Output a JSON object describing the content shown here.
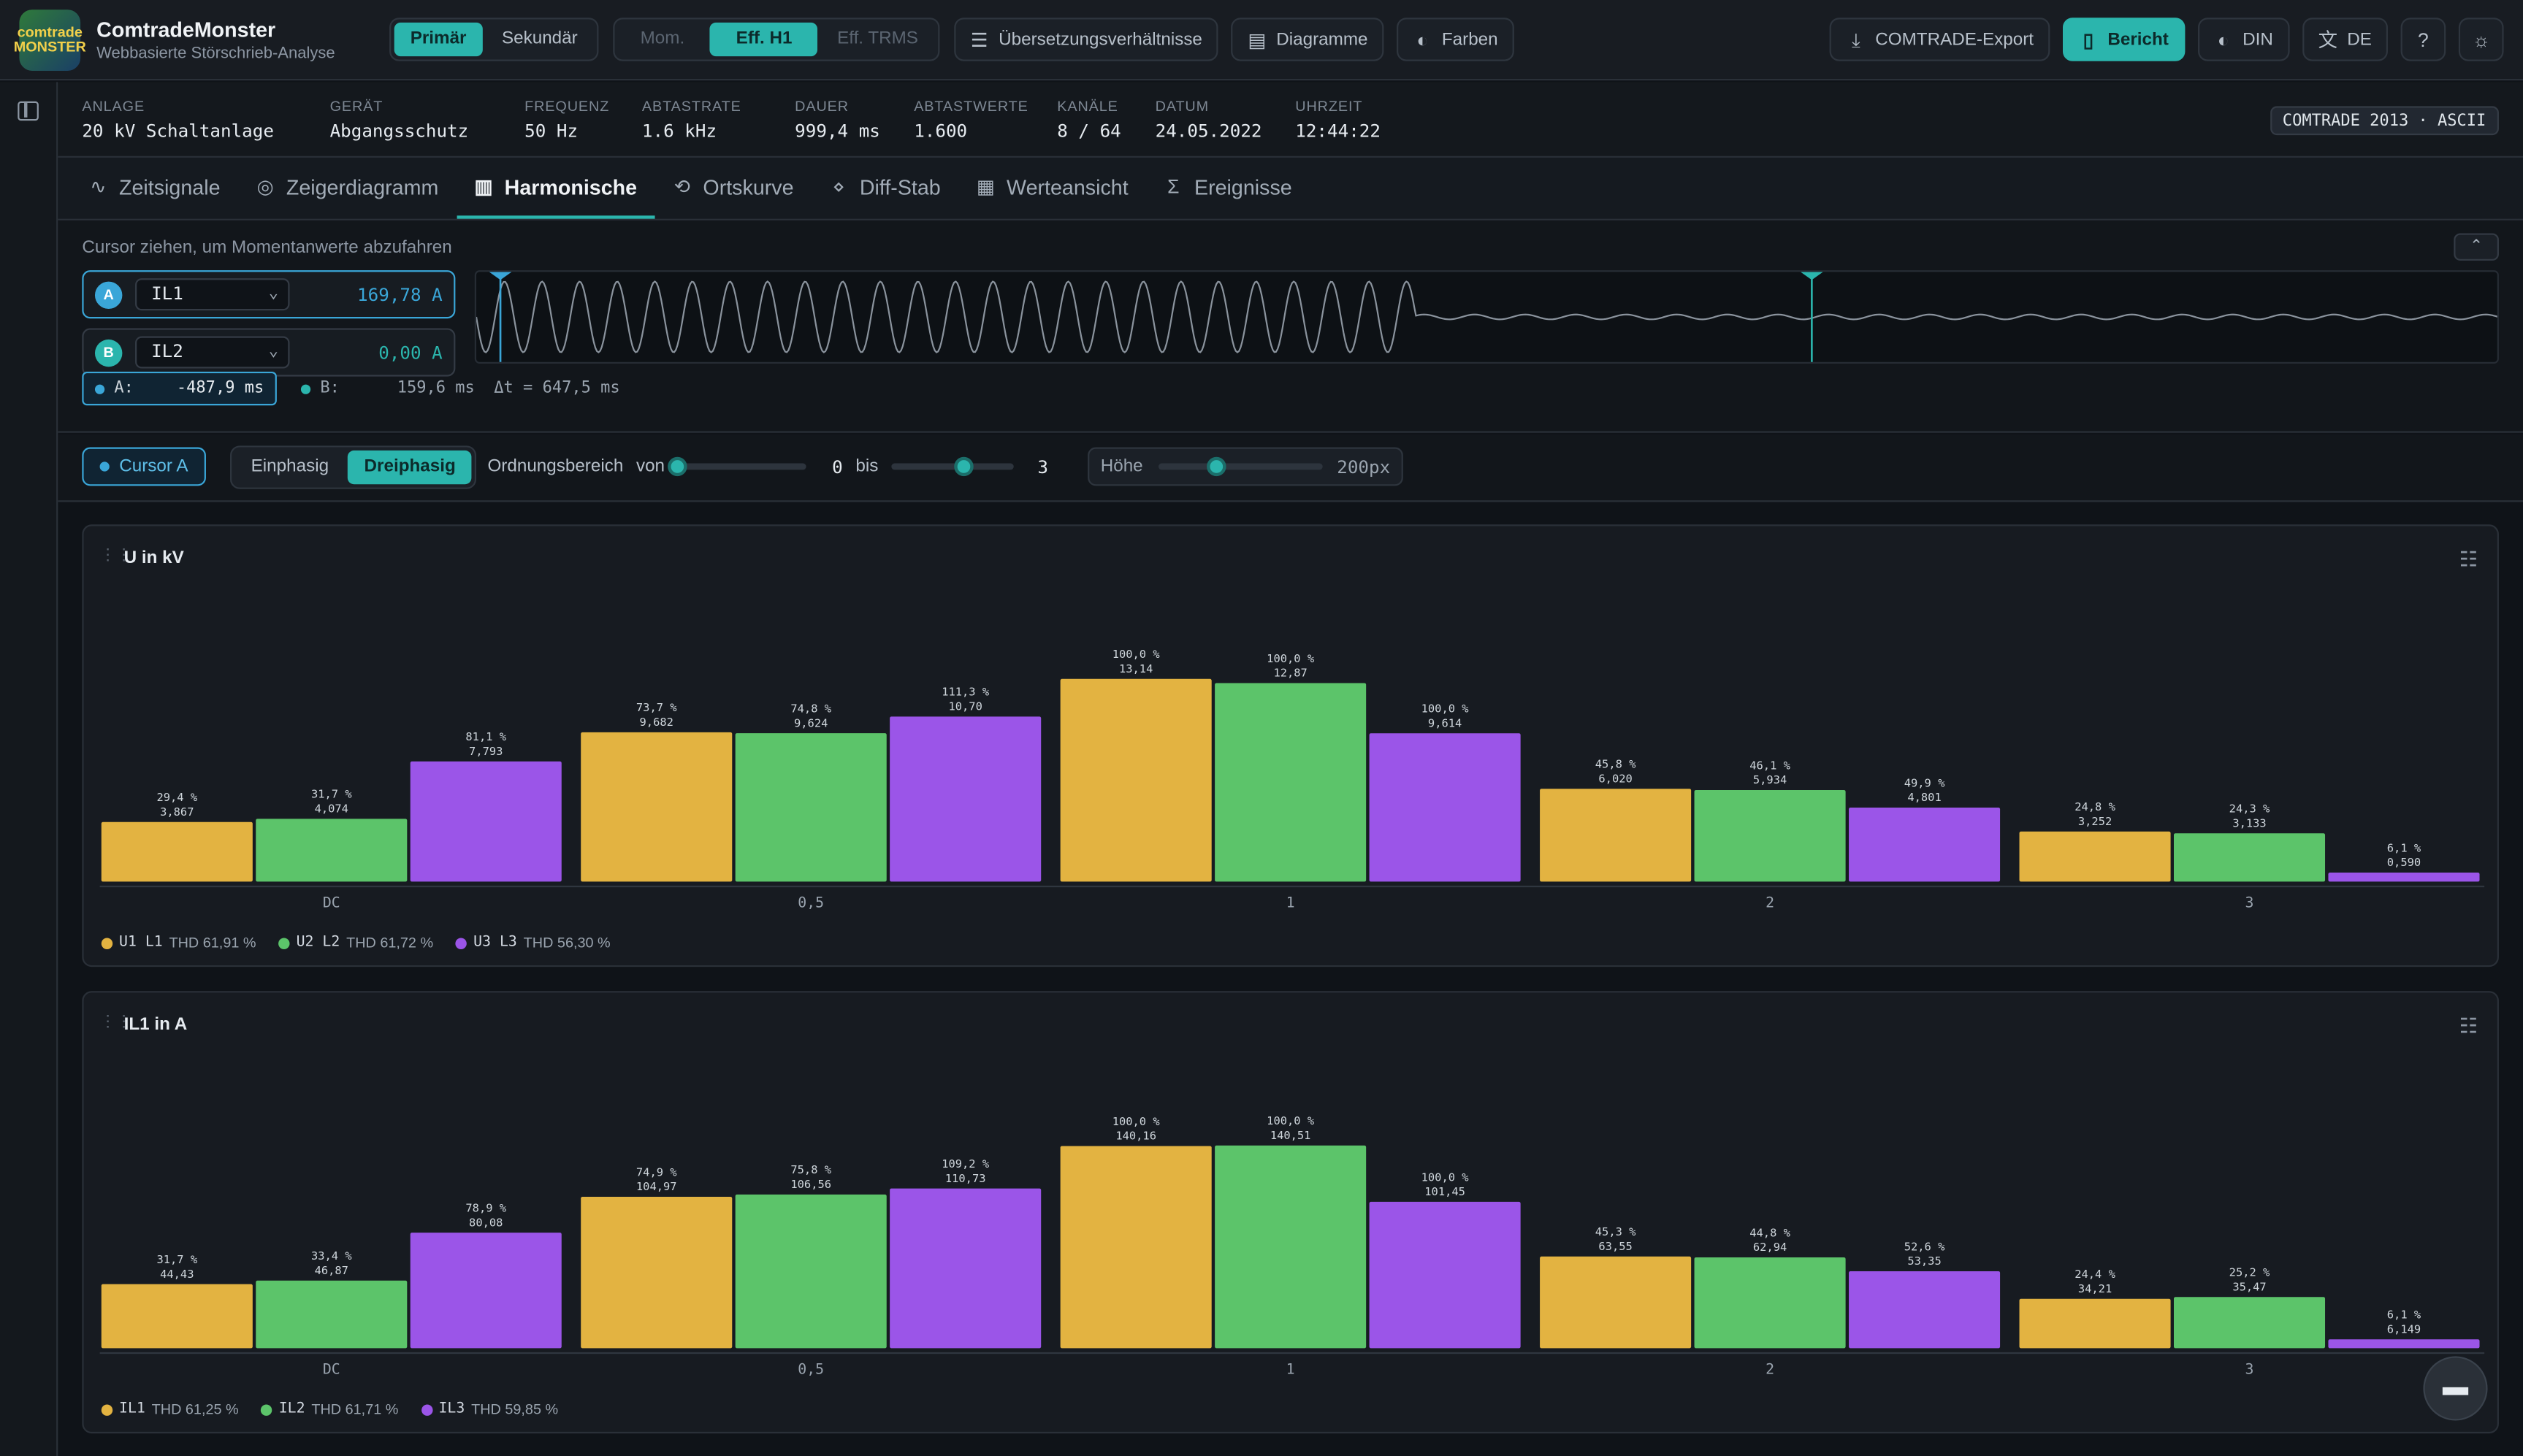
{
  "app": {
    "title": "ComtradeMonster",
    "subtitle": "Webbasierte Störschrieb-Analyse",
    "logo_text": "comtrade MONSTER"
  },
  "toolbar": {
    "side_options": [
      "Primär",
      "Sekundär"
    ],
    "side_selected": "Primär",
    "value_options": [
      "Mom.",
      "Eff. H1",
      "Eff. TRMS"
    ],
    "value_selected": "Eff. H1",
    "ratio_label": "Übersetzungsverhältnisse",
    "charts_label": "Diagramme",
    "colors_label": "Farben",
    "export_label": "COMTRADE-Export",
    "report_label": "Bericht",
    "din_label": "DIN",
    "lang_label": "DE"
  },
  "info": [
    {
      "key": "Anlage",
      "value": "20 kV Schaltanlage"
    },
    {
      "key": "Gerät",
      "value": "Abgangsschutz"
    },
    {
      "key": "Frequenz",
      "value": "50 Hz"
    },
    {
      "key": "Abtastrate",
      "value": "1.6 kHz"
    },
    {
      "key": "Dauer",
      "value": "999,4 ms"
    },
    {
      "key": "Abtastwerte",
      "value": "1.600"
    },
    {
      "key": "Kanäle",
      "value": "8 / 64"
    },
    {
      "key": "Datum",
      "value": "24.05.2022"
    },
    {
      "key": "Uhrzeit",
      "value": "12:44:22"
    }
  ],
  "format_badge": "COMTRADE 2013 · ASCII",
  "tabs": [
    {
      "label": "Zeitsignale",
      "icon": "waveform-icon"
    },
    {
      "label": "Zeigerdiagramm",
      "icon": "phasor-icon"
    },
    {
      "label": "Harmonische",
      "icon": "bar-chart-icon"
    },
    {
      "label": "Ortskurve",
      "icon": "locus-icon"
    },
    {
      "label": "Diff-Stab",
      "icon": "diff-icon"
    },
    {
      "label": "Werteansicht",
      "icon": "table-icon"
    },
    {
      "label": "Ereignisse",
      "icon": "sigma-icon"
    }
  ],
  "active_tab": "Harmonische",
  "cursor_panel": {
    "hint": "Cursor ziehen, um Momentanwerte abzufahren",
    "a": {
      "badge": "A",
      "channel": "IL1",
      "value": "169,78 A",
      "color": "#3aa6d8"
    },
    "b": {
      "badge": "B",
      "channel": "IL2",
      "value": "0,00 A",
      "color": "#2bb5ad"
    },
    "time_a_label": "A:",
    "time_a": "-487,9 ms",
    "time_b_label": "B:",
    "time_b": "159,6 ms",
    "delta_t": "Δt = 647,5 ms"
  },
  "controls": {
    "cursor_toggle": "Cursor A",
    "phase_options": [
      "Einphasig",
      "Dreiphasig"
    ],
    "phase_selected": "Dreiphasig",
    "order_label": "Ordnungsbereich",
    "from_label": "von",
    "from_value": "0",
    "to_label": "bis",
    "to_value": "3",
    "height_label": "Höhe",
    "height_value": "200px",
    "order_from_fraction": 0.0,
    "order_to_fraction": 0.6,
    "height_fraction": 0.35
  },
  "chart_data": [
    {
      "type": "bar",
      "title": "U in kV",
      "categories": [
        "DC",
        "0,5",
        "1",
        "2",
        "3"
      ],
      "series": [
        {
          "name": "U1 L1",
          "thd": "THD 61,91 %",
          "color": "#e3b341",
          "values": [
            3.867,
            9.682,
            13.14,
            6.02,
            3.252
          ],
          "percent": [
            "29,4 %",
            "73,7 %",
            "100,0 %",
            "45,8 %",
            "24,8 %"
          ],
          "labels": [
            "3,867",
            "9,682",
            "13,14",
            "6,020",
            "3,252"
          ]
        },
        {
          "name": "U2 L2",
          "thd": "THD 61,72 %",
          "color": "#5cc46a",
          "values": [
            4.074,
            9.624,
            12.87,
            5.934,
            3.133
          ],
          "percent": [
            "31,7 %",
            "74,8 %",
            "100,0 %",
            "46,1 %",
            "24,3 %"
          ],
          "labels": [
            "4,074",
            "9,624",
            "12,87",
            "5,934",
            "3,133"
          ]
        },
        {
          "name": "U3 L3",
          "thd": "THD 56,30 %",
          "color": "#9b55e8",
          "values": [
            7.793,
            10.7,
            9.614,
            4.801,
            0.59
          ],
          "percent": [
            "81,1 %",
            "111,3 %",
            "100,0 %",
            "49,9 %",
            "6,1 %"
          ],
          "labels": [
            "7,793",
            "10,70",
            "9,614",
            "4,801",
            "0,590"
          ]
        }
      ]
    },
    {
      "type": "bar",
      "title": "IL1 in A",
      "categories": [
        "DC",
        "0,5",
        "1",
        "2",
        "3"
      ],
      "series": [
        {
          "name": "IL1",
          "thd": "THD 61,25 %",
          "color": "#e3b341",
          "values": [
            44.43,
            104.97,
            140.16,
            63.55,
            34.21
          ],
          "percent": [
            "31,7 %",
            "74,9 %",
            "100,0 %",
            "45,3 %",
            "24,4 %"
          ],
          "labels": [
            "44,43",
            "104,97",
            "140,16",
            "63,55",
            "34,21"
          ]
        },
        {
          "name": "IL2",
          "thd": "THD 61,71 %",
          "color": "#5cc46a",
          "values": [
            46.87,
            106.56,
            140.51,
            62.94,
            35.47
          ],
          "percent": [
            "33,4 %",
            "75,8 %",
            "100,0 %",
            "44,8 %",
            "25,2 %"
          ],
          "labels": [
            "46,87",
            "106,56",
            "140,51",
            "62,94",
            "35,47"
          ]
        },
        {
          "name": "IL3",
          "thd": "THD 59,85 %",
          "color": "#9b55e8",
          "values": [
            80.08,
            110.73,
            101.45,
            53.35,
            6.149
          ],
          "percent": [
            "78,9 %",
            "109,2 %",
            "100,0 %",
            "52,6 %",
            "6,1 %"
          ],
          "labels": [
            "80,08",
            "110,73",
            "101,45",
            "53,35",
            "6,149"
          ]
        }
      ]
    }
  ]
}
